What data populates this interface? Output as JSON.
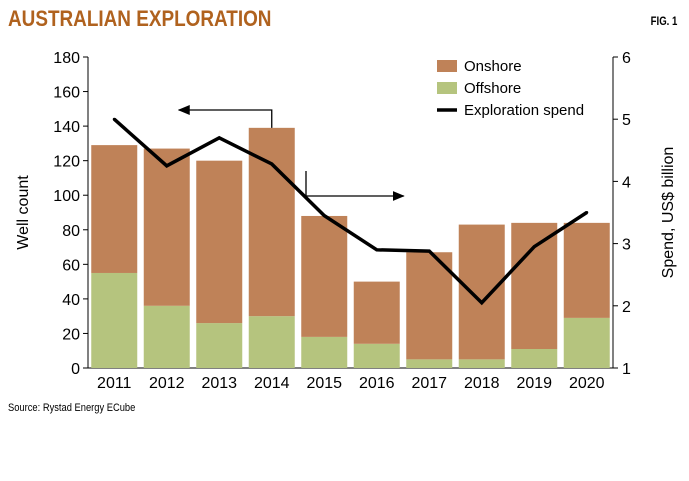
{
  "header": {
    "title": "AUSTRALIAN EXPLORATION",
    "fig_label": "FIG. 1"
  },
  "source": "Source: Rystad Energy ECube",
  "chart_data": {
    "type": "bar",
    "stacked": true,
    "categories": [
      "2011",
      "2012",
      "2013",
      "2014",
      "2015",
      "2016",
      "2017",
      "2018",
      "2019",
      "2020"
    ],
    "series": [
      {
        "name": "Offshore",
        "color": "#b5c47e",
        "values": [
          55,
          36,
          26,
          30,
          18,
          14,
          5,
          5,
          11,
          29
        ]
      },
      {
        "name": "Onshore",
        "color": "#bf8258",
        "values": [
          74,
          91,
          94,
          109,
          70,
          36,
          62,
          78,
          73,
          55
        ]
      }
    ],
    "line_series": {
      "name": "Exploration spend",
      "axis": "right",
      "color": "#000000",
      "values": [
        5.0,
        4.25,
        4.7,
        4.28,
        3.45,
        2.9,
        2.88,
        2.05,
        2.95,
        3.5
      ]
    },
    "ylabel": "Well count",
    "ylim": [
      0,
      180
    ],
    "yticks": [
      "0",
      "20",
      "40",
      "60",
      "80",
      "100",
      "120",
      "140",
      "160",
      "180"
    ],
    "y2label": "Spend, US$ billion",
    "y2lim": [
      1,
      6
    ],
    "y2ticks": [
      "1",
      "2",
      "3",
      "4",
      "5",
      "6"
    ],
    "legend": {
      "placement": "top-right",
      "items": [
        "Onshore",
        "Offshore",
        "Exploration spend"
      ]
    },
    "annotations": [
      {
        "type": "arrow",
        "direction": "left",
        "meaning": "well count axis"
      },
      {
        "type": "arrow",
        "direction": "right",
        "meaning": "spend axis"
      }
    ]
  }
}
